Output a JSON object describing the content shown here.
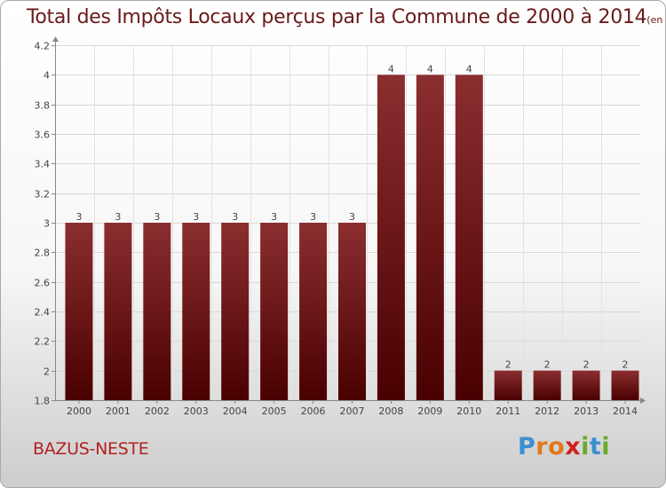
{
  "title": {
    "main": "Total des Impôts Locaux perçus par la Commune de 2000 à 2014",
    "unit": "(en milliers d'€)"
  },
  "commune": "BAZUS-NESTE",
  "logo": {
    "letters": [
      "P",
      "r",
      "o",
      "x",
      "i",
      "t",
      "i"
    ],
    "colors": [
      "#3a8fd0",
      "#e07a1a",
      "#e07a1a",
      "#d02020",
      "#6aaa2a",
      "#3a8fd0",
      "#6aaa2a"
    ]
  },
  "colors": {
    "bar_top": "#8b2e30",
    "bar_bottom": "#4a0000",
    "title": "#6b1a1a",
    "commune": "#b22222"
  },
  "chart_data": {
    "type": "bar",
    "categories": [
      "2000",
      "2001",
      "2002",
      "2003",
      "2004",
      "2005",
      "2006",
      "2007",
      "2008",
      "2009",
      "2010",
      "2011",
      "2012",
      "2013",
      "2014"
    ],
    "values": [
      3,
      3,
      3,
      3,
      3,
      3,
      3,
      3,
      4,
      4,
      4,
      2,
      2,
      2,
      2
    ],
    "data_labels": [
      "3",
      "3",
      "3",
      "3",
      "3",
      "3",
      "3",
      "3",
      "4",
      "4",
      "4",
      "2",
      "2",
      "2",
      "2"
    ],
    "ylim": [
      1.8,
      4.2
    ],
    "y_ticks": [
      1.8,
      2,
      2.2,
      2.4,
      2.6,
      2.8,
      3,
      3.2,
      3.4,
      3.6,
      3.8,
      4,
      4.2
    ],
    "y_tick_labels": [
      "1.8",
      "2",
      "2.2",
      "2.4",
      "2.6",
      "2.8",
      "3",
      "3.2",
      "3.4",
      "3.6",
      "3.8",
      "4",
      "4.2"
    ],
    "grid": true,
    "xlabel": "",
    "ylabel": ""
  }
}
